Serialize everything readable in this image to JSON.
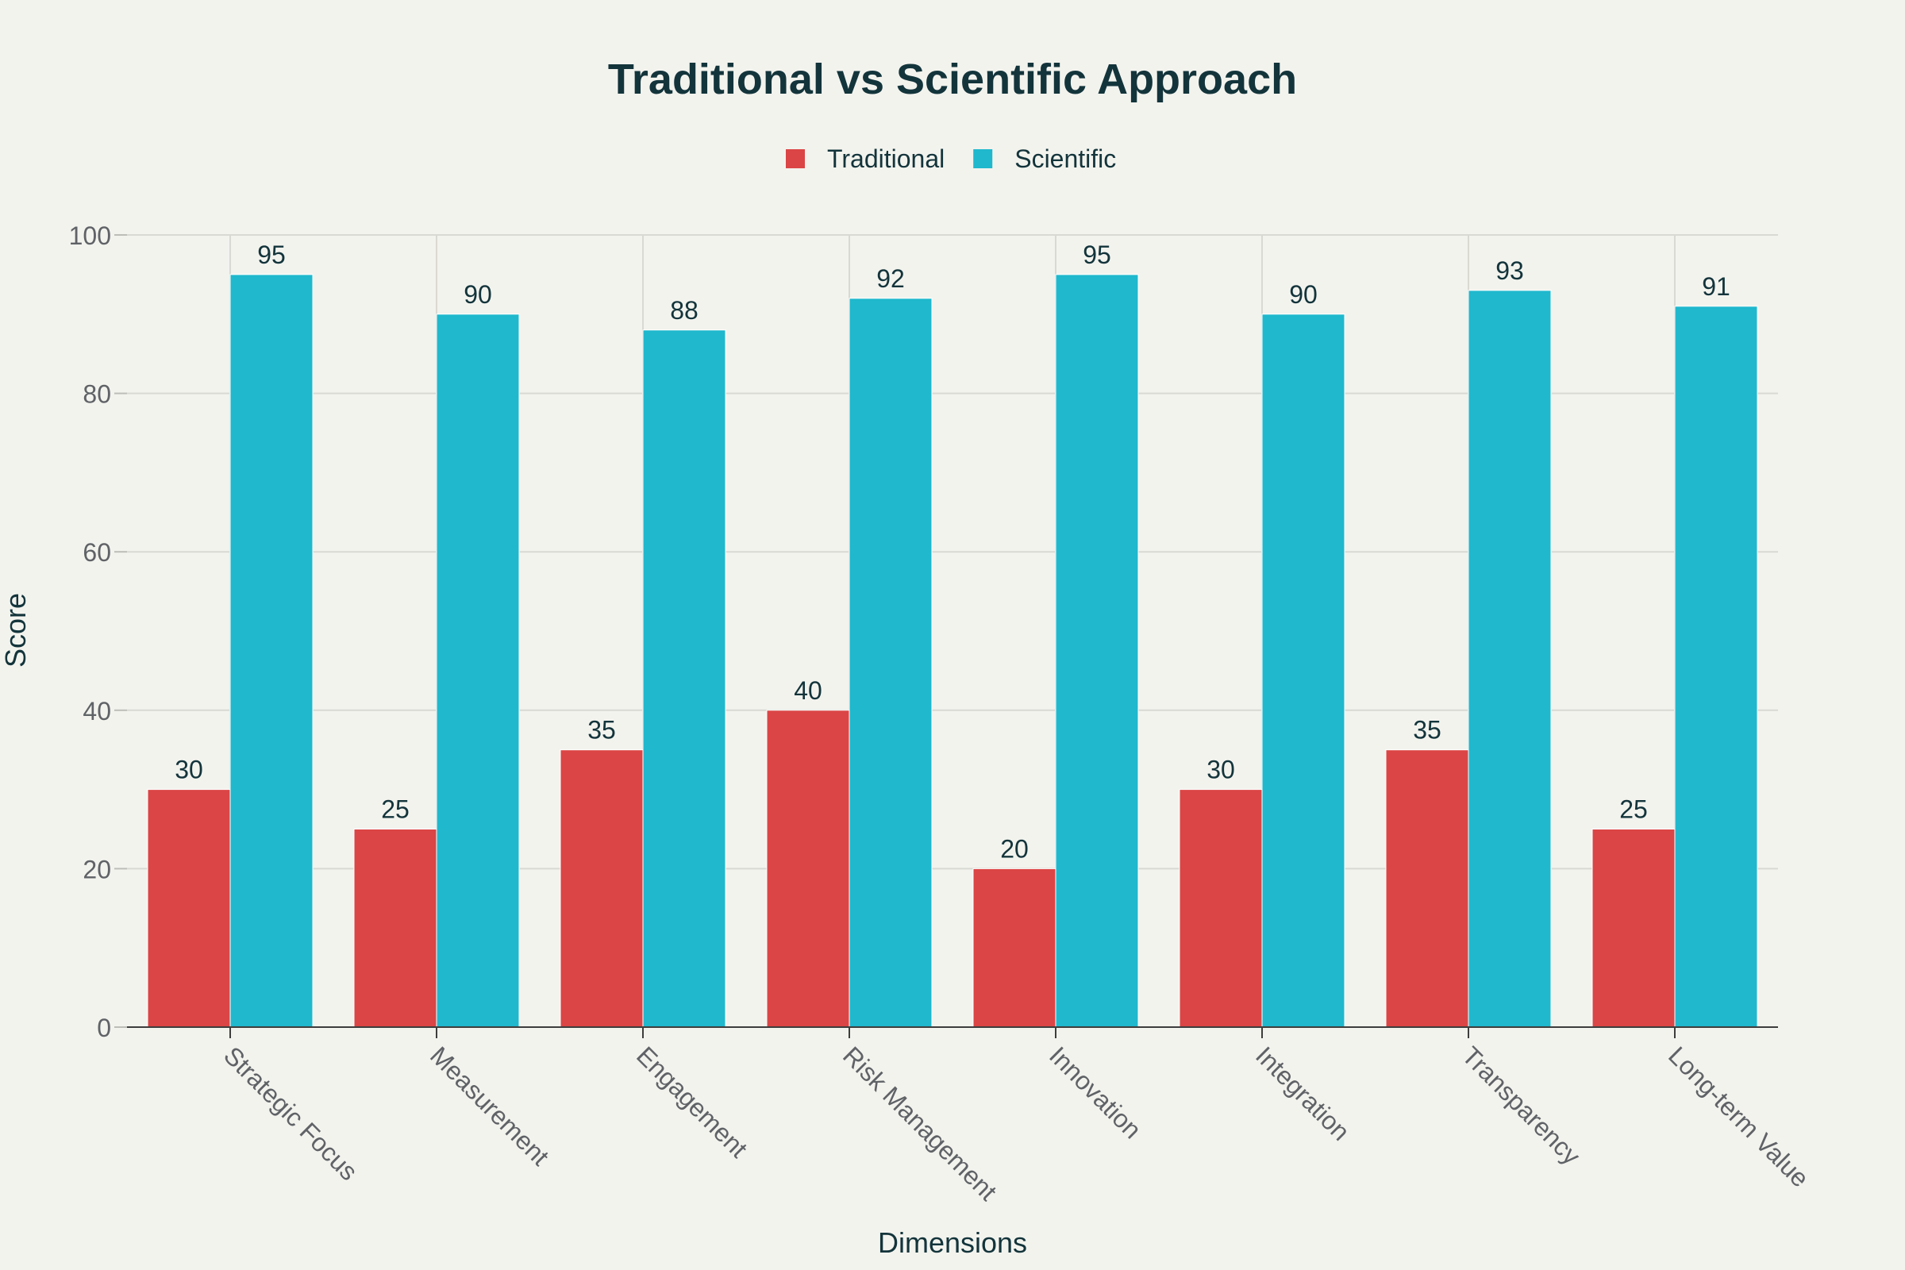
{
  "chart_data": {
    "type": "bar",
    "title": "Traditional vs Scientific Approach",
    "xlabel": "Dimensions",
    "ylabel": "Score",
    "ylim": [
      0,
      100
    ],
    "yticks": [
      0,
      20,
      40,
      60,
      80,
      100
    ],
    "grid": true,
    "legend_position": "top-center",
    "categories": [
      "Strategic Focus",
      "Measurement",
      "Engagement",
      "Risk Management",
      "Innovation",
      "Integration",
      "Transparency",
      "Long-term Value"
    ],
    "series": [
      {
        "name": "Traditional",
        "color": "#db4545",
        "values": [
          30,
          25,
          35,
          40,
          20,
          30,
          35,
          25
        ]
      },
      {
        "name": "Scientific",
        "color": "#1fb8cd",
        "values": [
          95,
          90,
          88,
          92,
          95,
          90,
          93,
          91
        ]
      }
    ]
  }
}
